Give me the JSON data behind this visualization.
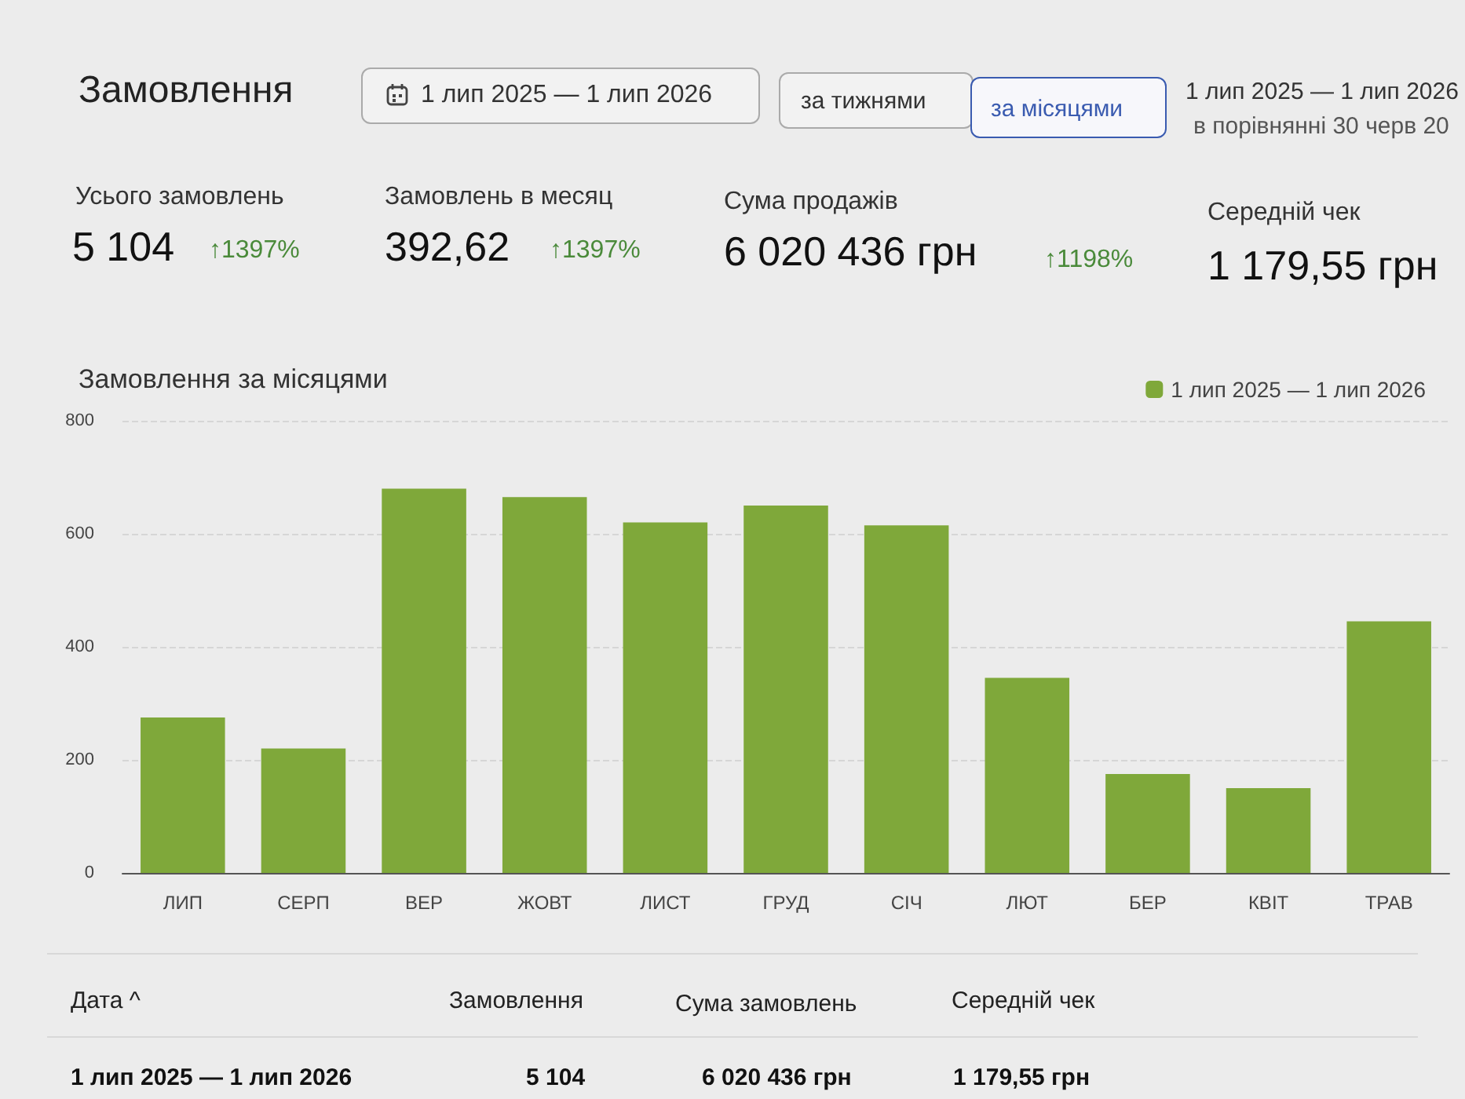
{
  "chart_data": {
    "type": "bar",
    "title": "Замовлення за місяцями",
    "categories": [
      "ЛИП",
      "СЕРП",
      "ВЕР",
      "ЖОВТ",
      "ЛИСТ",
      "ГРУД",
      "СІЧ",
      "ЛЮТ",
      "БЕР",
      "КВІТ",
      "ТРАВ"
    ],
    "series": [
      {
        "name": "1 лип 2025 — 1 лип 2026",
        "color": "#7fa83a",
        "values": [
          275,
          220,
          680,
          665,
          620,
          650,
          615,
          345,
          175,
          150,
          445
        ]
      }
    ],
    "ylim": [
      0,
      800
    ],
    "yticks": [
      0,
      200,
      400,
      600,
      800
    ],
    "grid": "y",
    "legend": "top right",
    "annotations": [
      "Замовлення",
      "1 лип 2025 — 1 лип 2026",
      "за тижнями",
      "за місяцями",
      "1 лип 2025 — 1 лип 2026",
      "в порівнянні 30 черв 20",
      "Усього замовлень",
      "5 104",
      "↑1397%",
      "Замовлень в месяц",
      "392,62",
      "↑1397%",
      "Сума продажів",
      "6 020 436 грн",
      "↑1198%",
      "Середній чек",
      "1 179,55 грн",
      "Дата ^",
      "Замовлення",
      "Сума замовлень",
      "Середній чек",
      "1 лип 2025 — 1 лип 2026",
      "5 104",
      "6 020 436 грн",
      "1 179,55 грн"
    ]
  }
}
